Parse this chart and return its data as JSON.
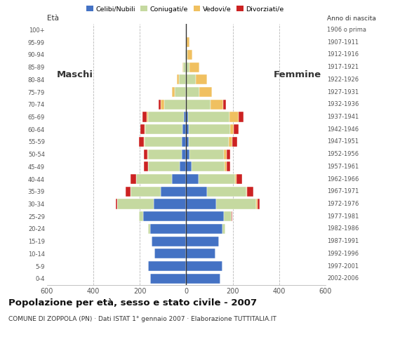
{
  "age_groups": [
    "100+",
    "95-99",
    "90-94",
    "85-89",
    "80-84",
    "75-79",
    "70-74",
    "65-69",
    "60-64",
    "55-59",
    "50-54",
    "45-49",
    "40-44",
    "35-39",
    "30-34",
    "25-29",
    "20-24",
    "15-19",
    "10-14",
    "5-9",
    "0-4"
  ],
  "birth_years": [
    "1906 o prima",
    "1907-1911",
    "1912-1916",
    "1917-1921",
    "1922-1926",
    "1927-1931",
    "1932-1936",
    "1937-1941",
    "1942-1946",
    "1947-1951",
    "1952-1956",
    "1957-1961",
    "1962-1966",
    "1967-1971",
    "1972-1976",
    "1977-1981",
    "1982-1986",
    "1987-1991",
    "1992-1996",
    "1997-2001",
    "2002-2006"
  ],
  "males": {
    "celibe": [
      0,
      0,
      0,
      0,
      0,
      0,
      0,
      10,
      15,
      18,
      18,
      28,
      60,
      110,
      140,
      185,
      155,
      148,
      138,
      165,
      155
    ],
    "coniugato": [
      0,
      2,
      5,
      12,
      30,
      50,
      95,
      155,
      160,
      160,
      145,
      135,
      155,
      130,
      158,
      18,
      8,
      0,
      0,
      0,
      0
    ],
    "vedovo": [
      0,
      0,
      0,
      5,
      10,
      10,
      15,
      5,
      5,
      5,
      5,
      0,
      0,
      0,
      0,
      0,
      0,
      0,
      0,
      0,
      0
    ],
    "divorziato": [
      0,
      0,
      0,
      0,
      0,
      0,
      10,
      18,
      18,
      20,
      15,
      20,
      25,
      20,
      5,
      0,
      0,
      0,
      0,
      0,
      0
    ]
  },
  "females": {
    "nubile": [
      0,
      0,
      0,
      0,
      0,
      0,
      0,
      8,
      10,
      12,
      15,
      22,
      52,
      90,
      130,
      162,
      155,
      140,
      125,
      155,
      148
    ],
    "coniugata": [
      0,
      2,
      5,
      15,
      40,
      55,
      105,
      178,
      178,
      172,
      148,
      142,
      158,
      168,
      172,
      32,
      12,
      0,
      0,
      0,
      0
    ],
    "vedova": [
      3,
      12,
      20,
      40,
      50,
      55,
      55,
      40,
      15,
      15,
      10,
      10,
      5,
      5,
      5,
      0,
      0,
      0,
      0,
      0,
      0
    ],
    "divorziata": [
      0,
      0,
      0,
      0,
      0,
      0,
      10,
      20,
      22,
      20,
      15,
      15,
      25,
      25,
      10,
      5,
      0,
      0,
      0,
      0,
      0
    ]
  },
  "colors": {
    "celibe": "#4472C4",
    "coniugato": "#C5D9A0",
    "vedovo": "#F0C060",
    "divorziato": "#CC2222"
  },
  "title": "Popolazione per età, sesso e stato civile - 2007",
  "subtitle": "COMUNE DI ZOPPOLA (PN) · Dati ISTAT 1° gennaio 2007 · Elaborazione TUTTITALIA.IT",
  "legend_labels": [
    "Celibi/Nubili",
    "Coniugati/e",
    "Vedovi/e",
    "Divorziati/e"
  ],
  "maschi_label": "Maschi",
  "femmine_label": "Femmine",
  "eta_label": "Età",
  "anno_label": "Anno di nascita",
  "xlim": 600,
  "background_color": "#ffffff",
  "grid_color": "#999999"
}
